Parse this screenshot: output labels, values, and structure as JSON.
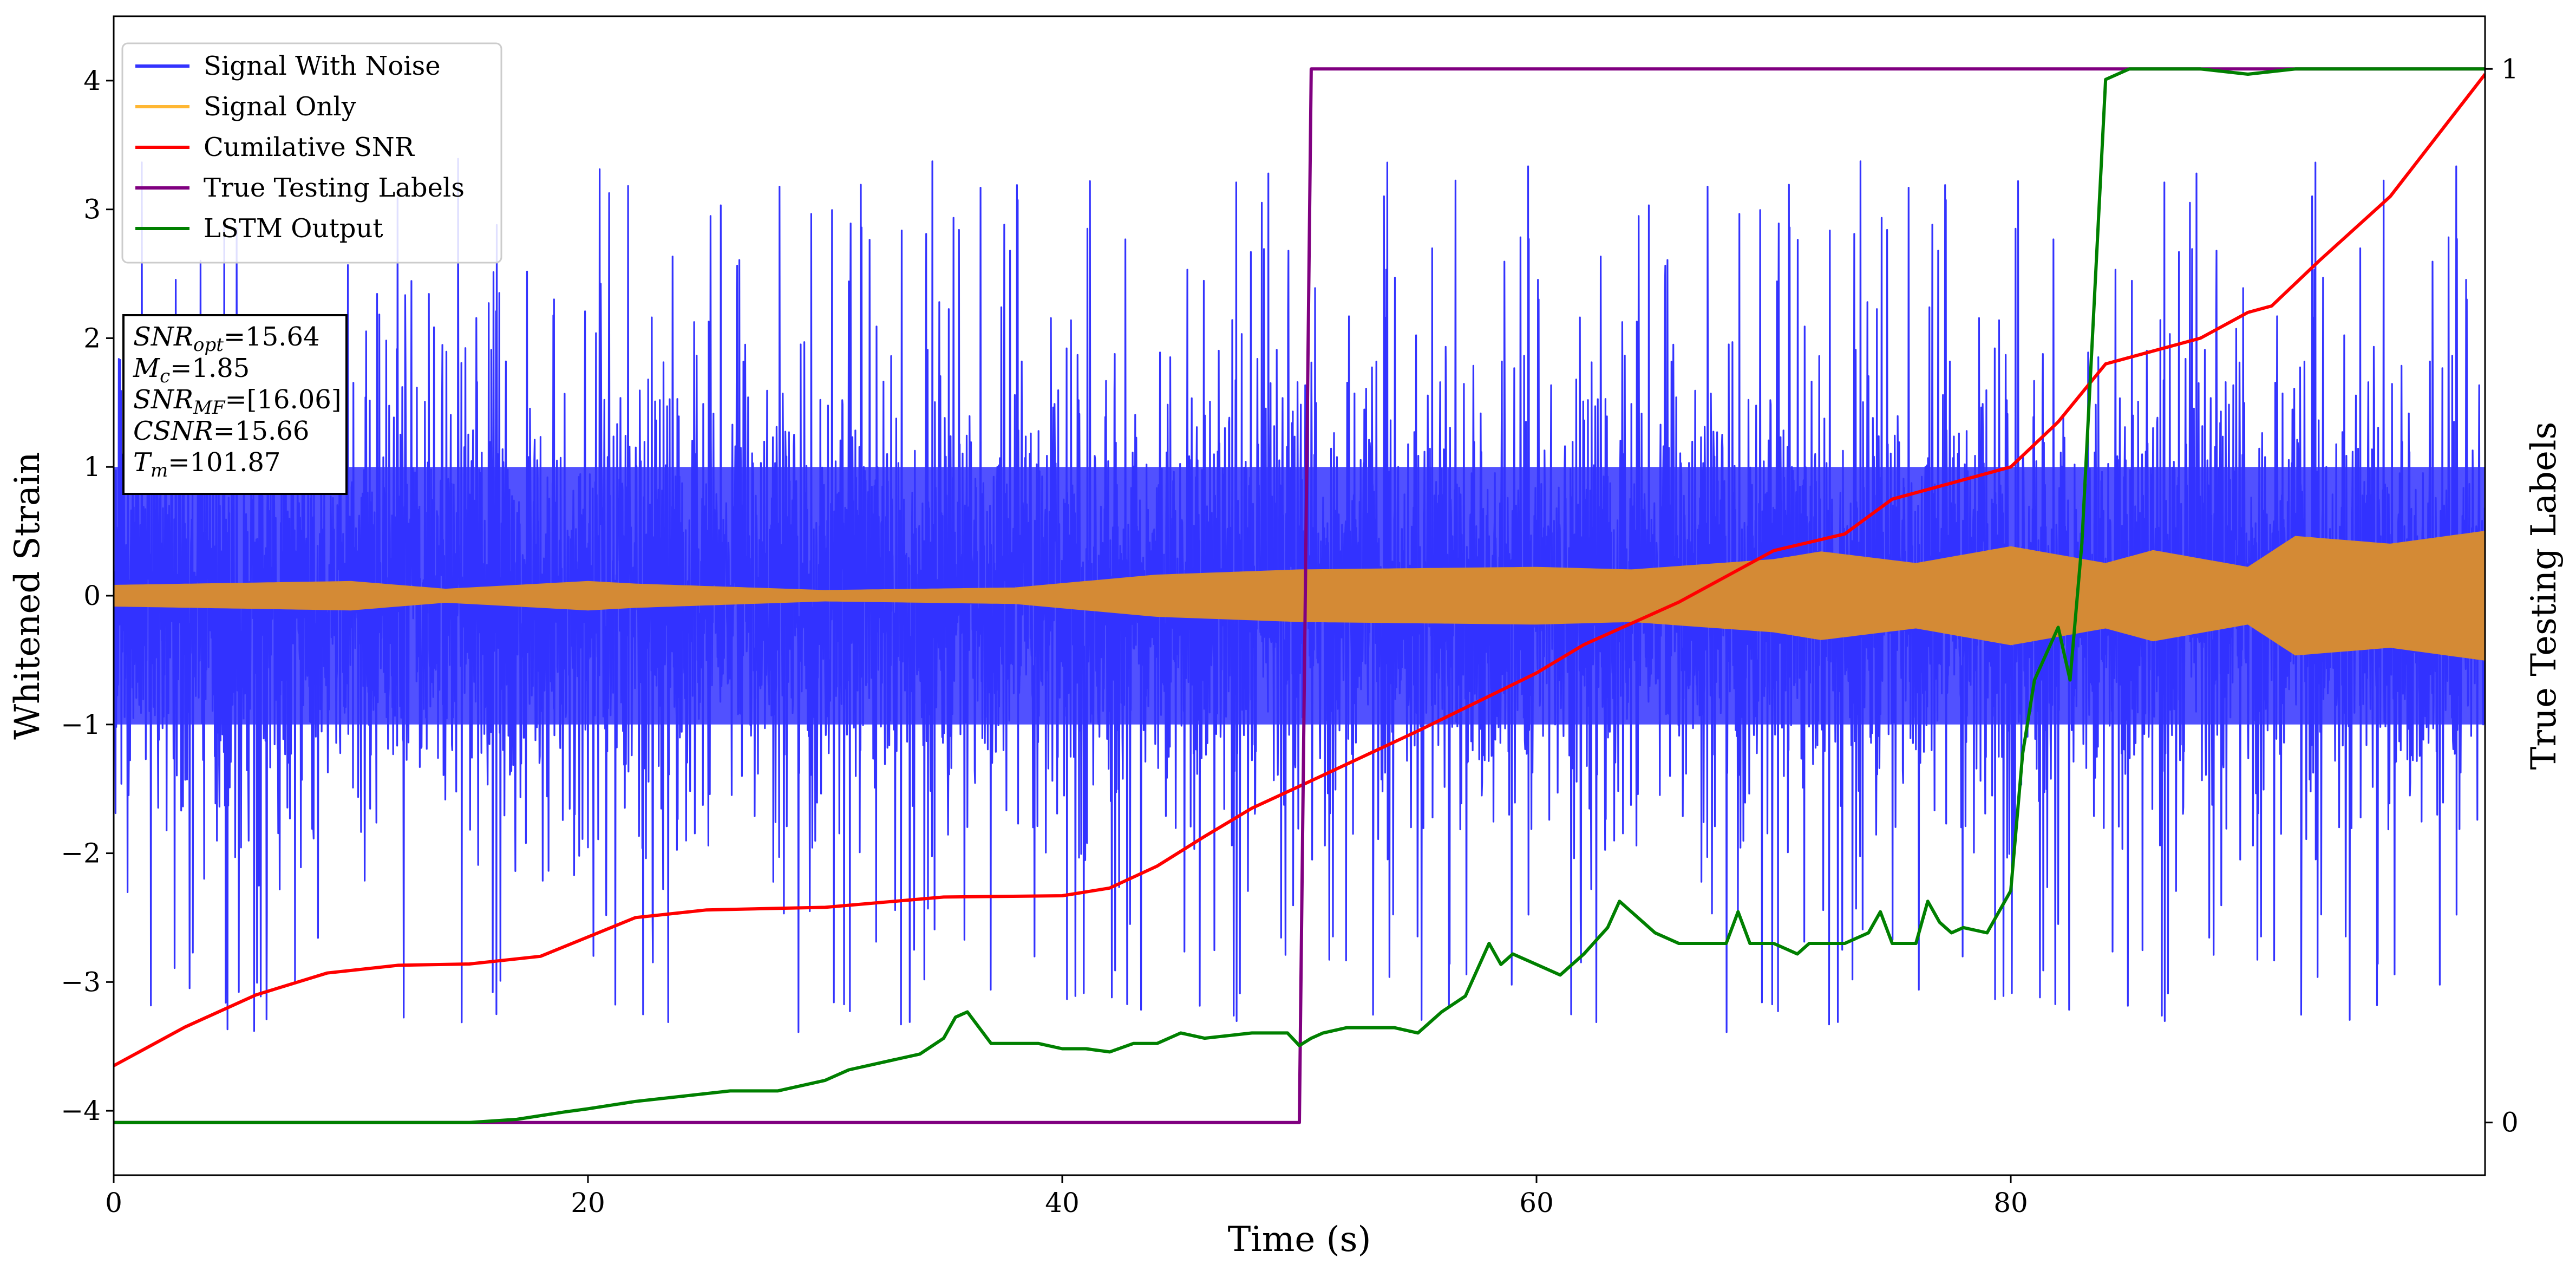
{
  "chart_data": {
    "type": "line",
    "xlabel": "Time (s)",
    "ylabel_left": "Whitened Strain",
    "ylabel_right": "True Testing Labels",
    "xlim": [
      0,
      100
    ],
    "ylim_left": [
      -4.5,
      4.5
    ],
    "ylim_right": [
      -0.05,
      1.05
    ],
    "x_ticks": [
      0,
      20,
      40,
      60,
      80
    ],
    "x_tick_labels": [
      "0",
      "20",
      "40",
      "60",
      "80"
    ],
    "y_ticks_left": [
      -4,
      -3,
      -2,
      -1,
      0,
      1,
      2,
      3,
      4
    ],
    "y_tick_labels_left": [
      "−4",
      "−3",
      "−2",
      "−1",
      "0",
      "1",
      "2",
      "3",
      "4"
    ],
    "y_ticks_right": [
      0,
      1
    ],
    "y_tick_labels_right": [
      "0",
      "1"
    ],
    "grid": false,
    "legend_position": "top-left",
    "legend": [
      {
        "label": "Signal With Noise",
        "color": "#3333ff"
      },
      {
        "label": "Signal Only",
        "color": "#ffb733"
      },
      {
        "label": "Cumilative SNR",
        "color": "#ff0000"
      },
      {
        "label": "True Testing Labels",
        "color": "#800080"
      },
      {
        "label": "LSTM Output",
        "color": "#008000"
      }
    ],
    "annotation": {
      "lines": [
        {
          "base": "SNR",
          "sub": "opt",
          "rest": "=15.64"
        },
        {
          "base": "M",
          "sub": "c",
          "rest": "=1.85"
        },
        {
          "base": "SNR",
          "sub": "MF",
          "rest": "=[16.06]"
        },
        {
          "base": "CSNR",
          "sub": "",
          "rest": "=15.66"
        },
        {
          "base": "T",
          "sub": "m",
          "rest": "=101.87"
        }
      ]
    },
    "series": [
      {
        "name": "Signal With Noise",
        "axis": "left",
        "color": "#3333ff",
        "style": "noise",
        "approx_range": [
          -4.1,
          3.4
        ],
        "band": [
          -1.0,
          1.0
        ]
      },
      {
        "name": "Signal Only",
        "axis": "left",
        "color": "#d48a35",
        "style": "envelope",
        "x": [
          0,
          10,
          14,
          20,
          22,
          30,
          38,
          44,
          50,
          60,
          64,
          70,
          72,
          76,
          80,
          84,
          86,
          90,
          92,
          96,
          100
        ],
        "amplitude": [
          0.08,
          0.11,
          0.05,
          0.11,
          0.09,
          0.04,
          0.06,
          0.16,
          0.2,
          0.22,
          0.2,
          0.28,
          0.34,
          0.25,
          0.38,
          0.25,
          0.35,
          0.22,
          0.46,
          0.4,
          0.5
        ]
      },
      {
        "name": "Cumilative SNR",
        "axis": "left",
        "color": "#ff0000",
        "x": [
          0,
          3,
          6,
          9,
          12,
          15,
          18,
          20,
          22,
          25,
          30,
          35,
          40,
          42,
          44,
          46,
          48,
          50,
          55,
          60,
          62,
          66,
          70,
          73,
          75,
          80,
          82,
          84,
          86,
          88,
          90,
          91,
          93,
          96,
          100
        ],
        "y": [
          -3.65,
          -3.35,
          -3.1,
          -2.93,
          -2.87,
          -2.86,
          -2.8,
          -2.65,
          -2.5,
          -2.44,
          -2.42,
          -2.34,
          -2.33,
          -2.27,
          -2.1,
          -1.87,
          -1.65,
          -1.48,
          -1.05,
          -0.6,
          -0.38,
          -0.05,
          0.35,
          0.48,
          0.75,
          1.0,
          1.35,
          1.8,
          1.9,
          2.0,
          2.2,
          2.25,
          2.6,
          3.1,
          4.05
        ]
      },
      {
        "name": "True Testing Labels",
        "axis": "right",
        "color": "#800080",
        "x": [
          0,
          50,
          50.5,
          100
        ],
        "y": [
          0,
          0,
          1,
          1
        ]
      },
      {
        "name": "LSTM Output",
        "axis": "right",
        "color": "#008000",
        "x": [
          0,
          15,
          17,
          19,
          20,
          22,
          24,
          26,
          28,
          30,
          31,
          33,
          34,
          35,
          35.5,
          36,
          37,
          39,
          40,
          41,
          42,
          43,
          44,
          45,
          46,
          48,
          49.5,
          50,
          50.5,
          51,
          52,
          53,
          54,
          55,
          56,
          57,
          58,
          58.5,
          59,
          60,
          61,
          62,
          63,
          63.5,
          64,
          65,
          66,
          67,
          68,
          68.5,
          69,
          70,
          71,
          71.5,
          72,
          73,
          74,
          74.5,
          75,
          76,
          76.5,
          77,
          77.5,
          78,
          79,
          80,
          80.5,
          81,
          82,
          82.5,
          83,
          84,
          85,
          87,
          88,
          90,
          92,
          100
        ],
        "y": [
          0,
          0,
          0.003,
          0.01,
          0.013,
          0.02,
          0.025,
          0.03,
          0.03,
          0.04,
          0.05,
          0.06,
          0.065,
          0.08,
          0.1,
          0.105,
          0.075,
          0.075,
          0.07,
          0.07,
          0.067,
          0.075,
          0.075,
          0.085,
          0.08,
          0.085,
          0.085,
          0.073,
          0.08,
          0.085,
          0.09,
          0.09,
          0.09,
          0.085,
          0.105,
          0.12,
          0.17,
          0.15,
          0.16,
          0.15,
          0.14,
          0.16,
          0.185,
          0.21,
          0.2,
          0.18,
          0.17,
          0.17,
          0.17,
          0.2,
          0.17,
          0.17,
          0.16,
          0.17,
          0.17,
          0.17,
          0.18,
          0.2,
          0.17,
          0.17,
          0.21,
          0.19,
          0.18,
          0.185,
          0.18,
          0.22,
          0.35,
          0.42,
          0.47,
          0.42,
          0.55,
          0.99,
          1.0,
          1.0,
          1.0,
          0.995,
          1.0,
          1.0
        ]
      }
    ]
  }
}
